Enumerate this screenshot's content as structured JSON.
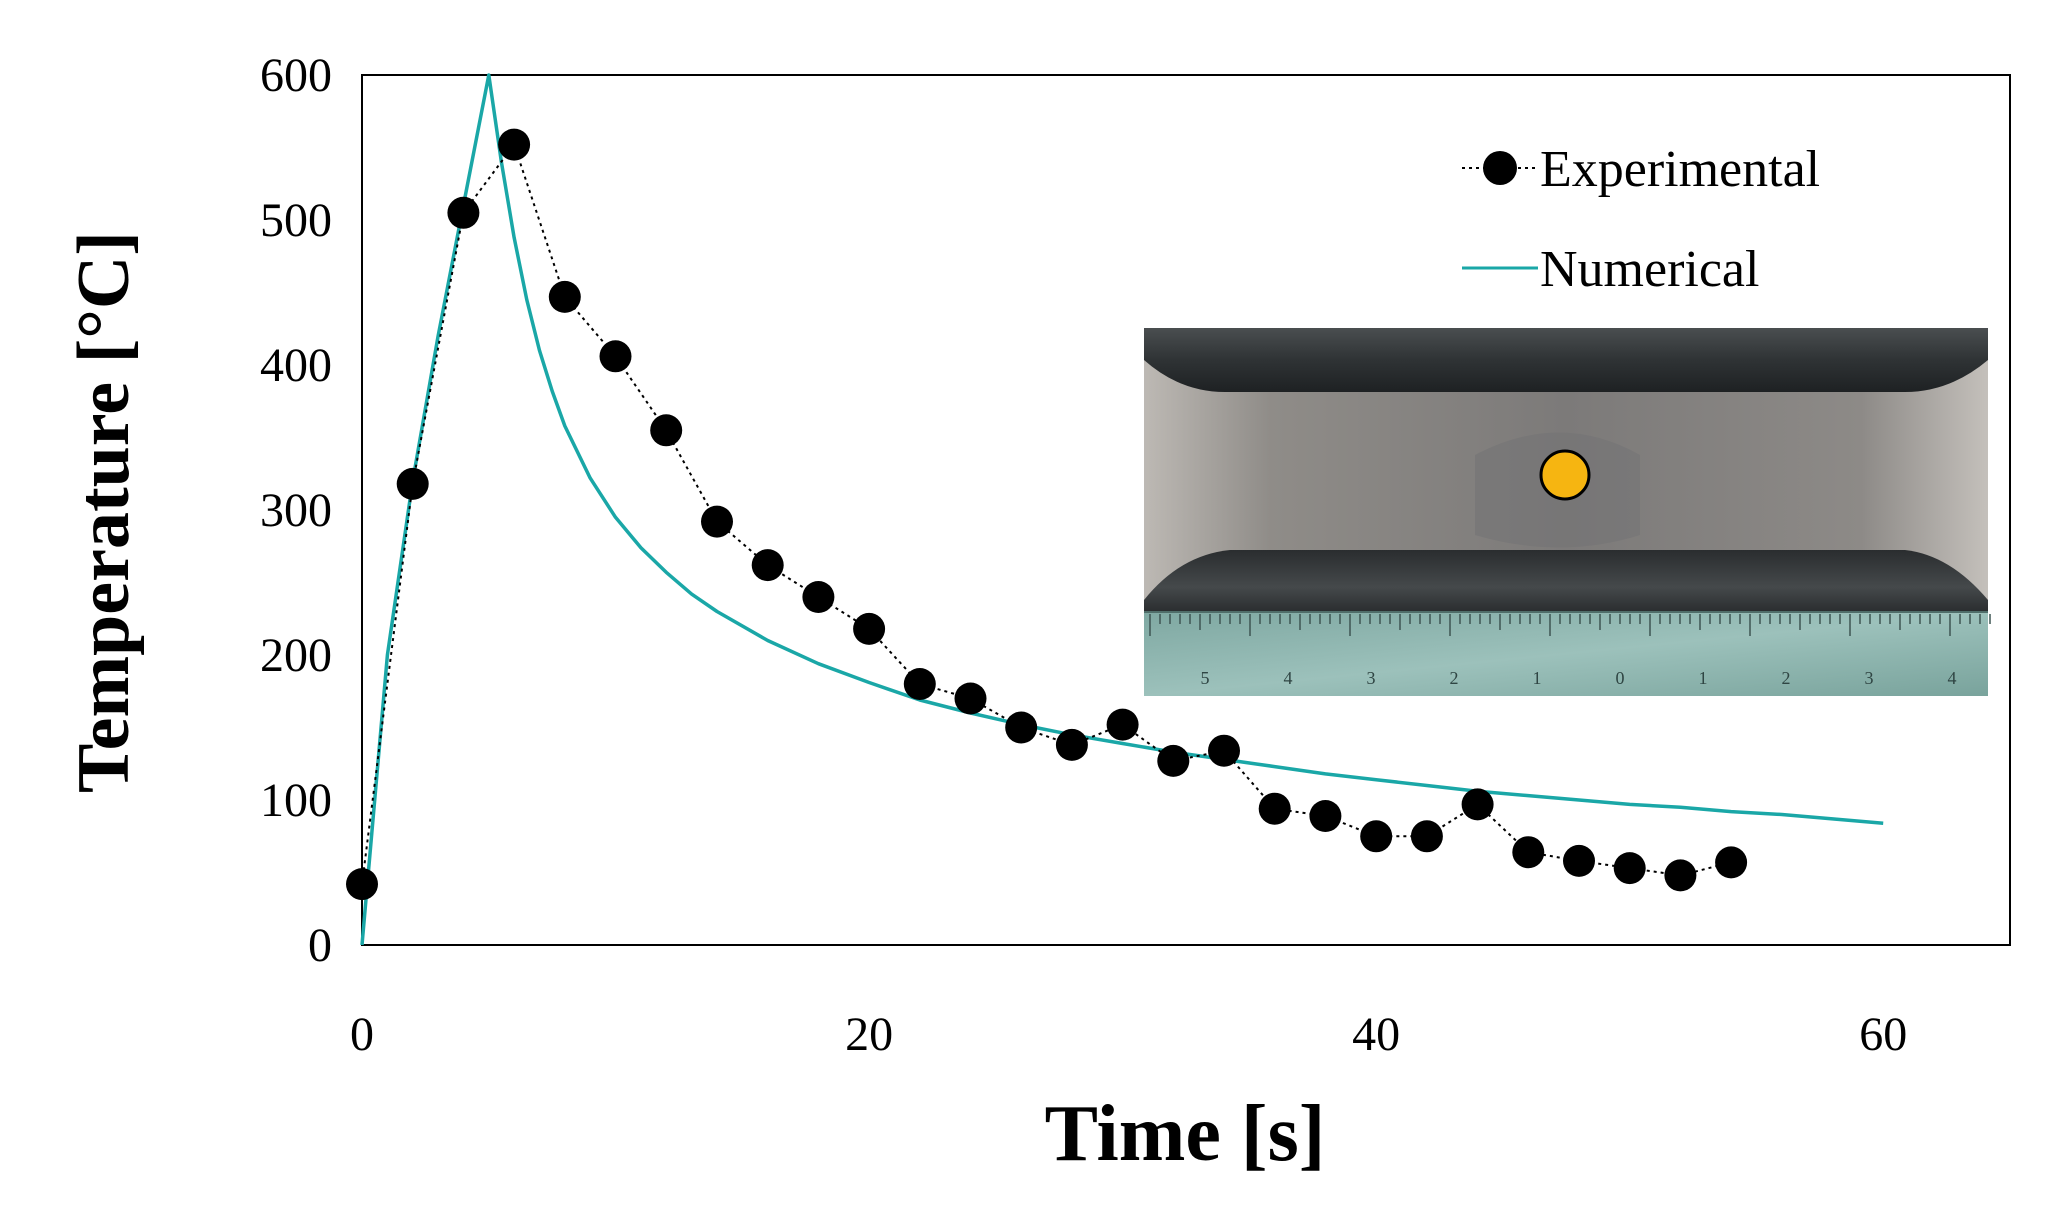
{
  "chart_data": {
    "type": "line",
    "title": "",
    "xlabel": "Time [s]",
    "ylabel": "Temperature [°C]",
    "xlim": [
      0,
      65
    ],
    "ylim": [
      0,
      600
    ],
    "x_ticks": [
      0,
      20,
      40,
      60
    ],
    "x_tick_labels": [
      "0",
      "20",
      "40",
      "60"
    ],
    "y_ticks": [
      0,
      100,
      200,
      300,
      400,
      500,
      600
    ],
    "y_tick_labels": [
      "0",
      "100",
      "200",
      "300",
      "400",
      "500",
      "600"
    ],
    "grid": false,
    "legend_position": "top-right",
    "series": [
      {
        "name": "Experimental",
        "style": "markers-dotted-line",
        "color": "#000000",
        "x": [
          0,
          2,
          4,
          6,
          8,
          10,
          12,
          14,
          16,
          18,
          20,
          22,
          24,
          26,
          28,
          30,
          32,
          34,
          36,
          38,
          40,
          42,
          44,
          46,
          48,
          50,
          52,
          54
        ],
        "y": [
          42,
          318,
          505,
          552,
          447,
          406,
          355,
          292,
          262,
          240,
          218,
          180,
          170,
          150,
          138,
          152,
          127,
          134,
          94,
          89,
          75,
          75,
          97,
          64,
          58,
          53,
          48,
          57
        ]
      },
      {
        "name": "Numerical",
        "style": "line",
        "color": "#1aa7a7",
        "x": [
          0,
          1,
          2,
          3,
          4,
          5,
          5.5,
          6,
          6.5,
          7,
          7.5,
          8,
          9,
          10,
          11,
          12,
          13,
          14,
          16,
          18,
          20,
          22,
          24,
          26,
          28,
          30,
          32,
          34,
          36,
          38,
          40,
          42,
          44,
          46,
          48,
          50,
          52,
          54,
          56,
          58,
          60
        ],
        "y": [
          0,
          200,
          320,
          420,
          510,
          600,
          540,
          488,
          445,
          410,
          382,
          358,
          322,
          295,
          274,
          257,
          242,
          230,
          210,
          194,
          181,
          169,
          160,
          152,
          145,
          139,
          133,
          128,
          123,
          118,
          114,
          110,
          106,
          103,
          100,
          97,
          95,
          92,
          90,
          87,
          84
        ]
      }
    ],
    "inset": {
      "description_visible": false,
      "ruler_ticks": [
        "5",
        "4",
        "3",
        "2",
        "1",
        "0",
        "1",
        "2",
        "3",
        "4"
      ],
      "marker_color": "#f6b511"
    }
  }
}
